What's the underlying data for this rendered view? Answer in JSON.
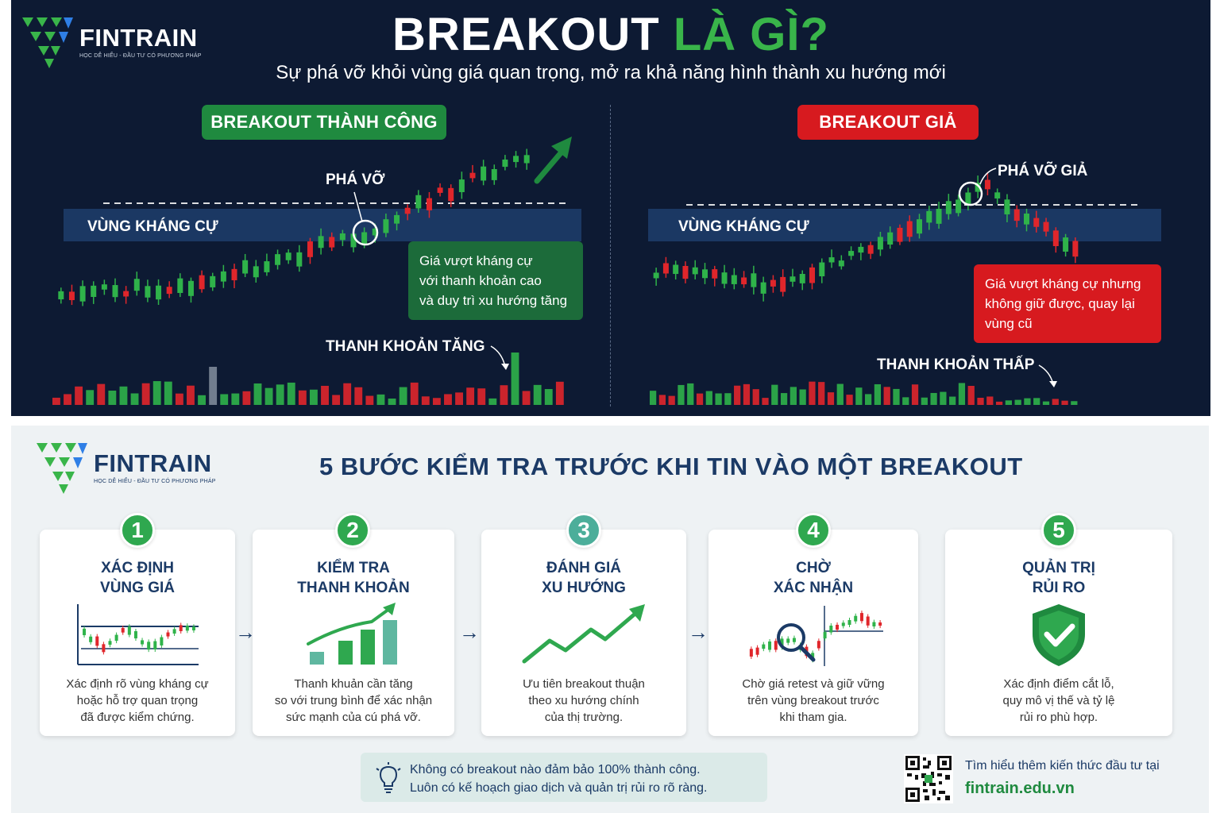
{
  "brand": {
    "name": "FINTRAIN",
    "tagline": "HỌC DỄ HIỂU - ĐẦU TƯ CÓ PHƯƠNG PHÁP"
  },
  "hero": {
    "title_part1": "BREAKOUT",
    "title_part2": "LÀ GÌ?",
    "subtitle": "Sự phá vỡ khỏi vùng giá quan trọng, mở ra khả năng hình thành xu hướng mới"
  },
  "success_panel": {
    "badge": "BREAKOUT THÀNH CÔNG",
    "breakout_label": "PHÁ VỠ",
    "zone_label": "VÙNG KHÁNG CỰ",
    "note_lines": [
      "Giá vượt kháng cự",
      "với thanh khoản cao",
      "và duy trì xu hướng tăng"
    ],
    "volume_label": "THANH KHOẢN TĂNG"
  },
  "fake_panel": {
    "badge": "BREAKOUT GIẢ",
    "breakout_label": "PHÁ VỠ GIẢ",
    "zone_label": "VÙNG KHÁNG CỰ",
    "note_lines": [
      "Giá vượt kháng cự nhưng",
      "không giữ được, quay lại",
      "vùng cũ"
    ],
    "volume_label": "THANH KHOẢN THẤP"
  },
  "steps_section": {
    "title": "5 BƯỚC KIỂM TRA TRƯỚC KHI TIN VÀO MỘT BREAKOUT",
    "steps": [
      {
        "number": "1",
        "title_lines": [
          "XÁC ĐỊNH",
          "VÙNG GIÁ"
        ],
        "desc_lines": [
          "Xác định rõ vùng kháng cự",
          "hoặc hỗ trợ quan trọng",
          "đã được kiểm chứng."
        ],
        "icon": "range-chart-icon",
        "color": "#2fa84f"
      },
      {
        "number": "2",
        "title_lines": [
          "KIỂM TRA",
          "THANH KHOẢN"
        ],
        "desc_lines": [
          "Thanh khuản cần tăng",
          "so với trung bình để xác nhận",
          "sức mạnh của cú phá vỡ."
        ],
        "icon": "volume-bars-icon",
        "color": "#2fa84f"
      },
      {
        "number": "3",
        "title_lines": [
          "ĐÁNH GIÁ",
          "XU HƯỚNG"
        ],
        "desc_lines": [
          "Ưu tiên breakout thuận",
          "theo xu hướng chính",
          "của thị trường."
        ],
        "icon": "uptrend-icon",
        "color": "#4cae9a"
      },
      {
        "number": "4",
        "title_lines": [
          "CHỜ",
          "XÁC NHẬN"
        ],
        "desc_lines": [
          "Chờ giá retest và giữ vững",
          "trên vùng breakout trước",
          "khi tham gia."
        ],
        "icon": "magnifier-chart-icon",
        "color": "#2fa84f"
      },
      {
        "number": "5",
        "title_lines": [
          "QUẢN TRỊ",
          "RỦI RO"
        ],
        "desc_lines": [
          "Xác định điểm cắt lỗ,",
          "quy mô vị thế và tỷ lệ",
          "rủi ro phù hợp."
        ],
        "icon": "shield-check-icon",
        "color": "#2fa84f"
      }
    ]
  },
  "tip": {
    "lines": [
      "Không có breakout nào đảm bảo 100% thành công.",
      "Luôn có kế hoạch giao dịch và quản trị rủi ro rõ ràng."
    ]
  },
  "footer": {
    "learn_more": "Tìm hiểu thêm kiến thức đầu tư tại",
    "url": "fintrain.edu.vn"
  },
  "colors": {
    "navy": "#0d1a33",
    "green": "#39b54a",
    "red": "#d71a1f",
    "dark_blue": "#1b3a66"
  }
}
